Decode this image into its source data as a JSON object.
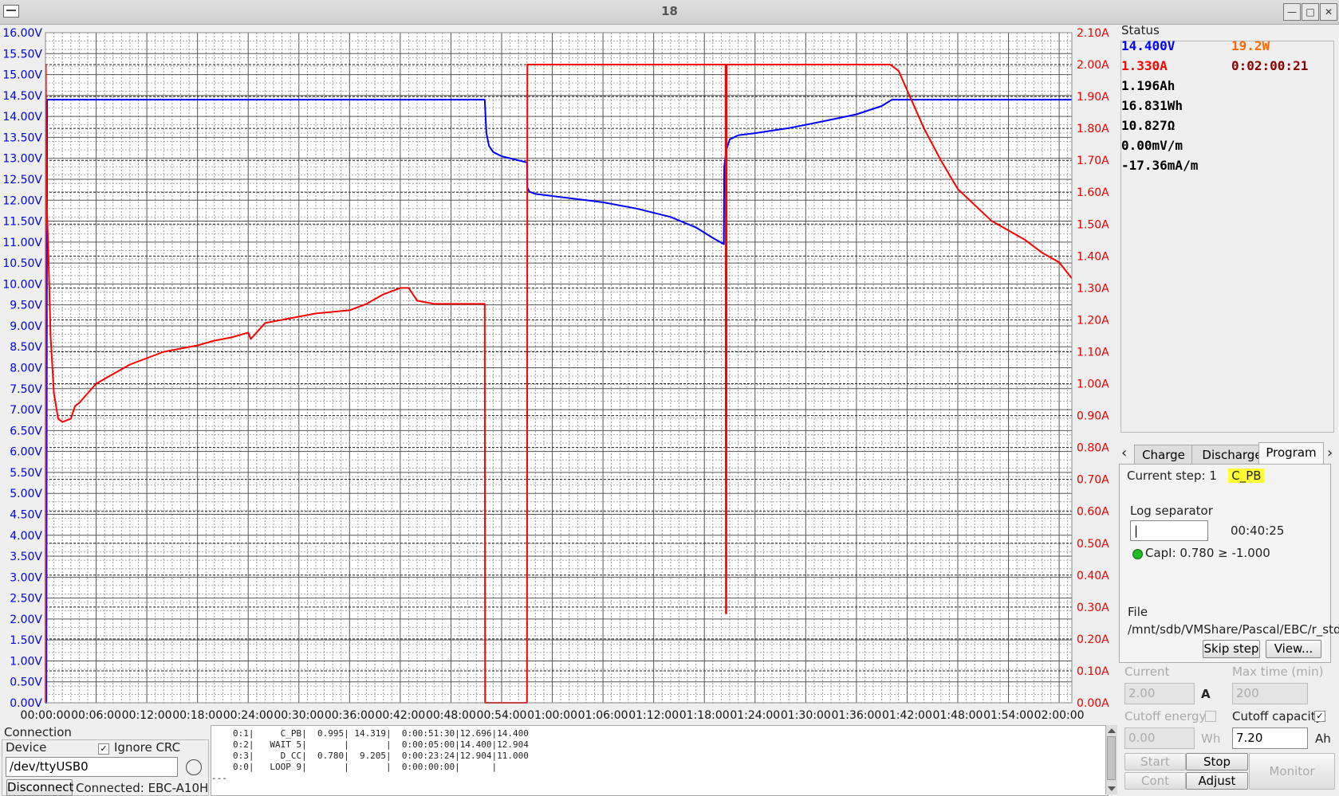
{
  "window": {
    "title": "18"
  },
  "chart_data": {
    "type": "line",
    "xlabel": "",
    "x_ticks": [
      "00:00:00",
      "00:06:00",
      "00:12:00",
      "00:18:00",
      "00:24:00",
      "00:30:00",
      "00:36:00",
      "00:42:00",
      "00:48:00",
      "00:54:00",
      "01:00:00",
      "01:06:00",
      "01:12:00",
      "01:18:00",
      "01:24:00",
      "01:30:00",
      "01:36:00",
      "01:42:00",
      "01:48:00",
      "01:54:00",
      "02:00:00"
    ],
    "x_range_min": [
      0,
      121.5
    ],
    "y_left": {
      "label": "",
      "unit": "V",
      "range": [
        0,
        16
      ],
      "ticks": [
        "0.00V",
        "0.50V",
        "1.00V",
        "1.50V",
        "2.00V",
        "2.50V",
        "3.00V",
        "3.50V",
        "4.00V",
        "4.50V",
        "5.00V",
        "5.50V",
        "6.00V",
        "6.50V",
        "7.00V",
        "7.50V",
        "8.00V",
        "8.50V",
        "9.00V",
        "9.50V",
        "10.00V",
        "10.50V",
        "11.00V",
        "11.50V",
        "12.00V",
        "12.50V",
        "13.00V",
        "13.50V",
        "14.00V",
        "14.50V",
        "15.00V",
        "15.50V",
        "16.00V"
      ]
    },
    "y_right": {
      "label": "",
      "unit": "A",
      "range": [
        0,
        2.1
      ],
      "ticks": [
        "0.00A",
        "0.10A",
        "0.20A",
        "0.30A",
        "0.40A",
        "0.50A",
        "0.60A",
        "0.70A",
        "0.80A",
        "0.90A",
        "1.00A",
        "1.10A",
        "1.20A",
        "1.30A",
        "1.40A",
        "1.50A",
        "1.60A",
        "1.70A",
        "1.80A",
        "1.90A",
        "2.00A",
        "2.10A"
      ]
    },
    "grid": true,
    "series": [
      {
        "axis": "left",
        "color": "#0000ff",
        "x": [
          0,
          0.1,
          0.2,
          52,
          52.2,
          52.5,
          53,
          54,
          56,
          57,
          57.05,
          57.3,
          58,
          62,
          66,
          70,
          74,
          77,
          79,
          80.3,
          80.35,
          80.6,
          81,
          82,
          84,
          88,
          92,
          96,
          99,
          100.2,
          101,
          121.5
        ],
        "y": [
          0,
          0,
          14.4,
          14.4,
          13.6,
          13.3,
          13.15,
          13.05,
          12.95,
          12.9,
          12.3,
          12.2,
          12.15,
          12.05,
          11.95,
          11.8,
          11.6,
          11.35,
          11.1,
          10.95,
          12.8,
          13.2,
          13.45,
          13.55,
          13.6,
          13.72,
          13.88,
          14.05,
          14.25,
          14.4,
          14.4,
          14.4
        ]
      },
      {
        "axis": "right",
        "color": "#ff0000",
        "x": [
          0,
          0.05,
          0.1,
          0.3,
          0.6,
          1,
          1.5,
          2,
          3,
          3.5,
          4,
          5,
          6,
          8,
          10,
          12,
          14,
          16,
          18,
          20,
          22,
          24,
          24.3,
          26,
          28,
          30,
          32,
          34,
          36,
          38,
          40,
          42,
          43,
          44,
          46,
          50,
          52,
          52.05,
          57,
          57.05,
          80.5,
          80.55,
          80.6,
          80.65,
          100,
          101,
          102,
          104,
          106,
          108,
          110,
          112,
          114,
          116,
          118,
          120,
          121.5
        ],
        "y": [
          0,
          2.0,
          1.6,
          1.45,
          1.15,
          0.97,
          0.89,
          0.88,
          0.89,
          0.93,
          0.94,
          0.97,
          1.0,
          1.03,
          1.06,
          1.08,
          1.1,
          1.11,
          1.12,
          1.135,
          1.145,
          1.16,
          1.14,
          1.19,
          1.2,
          1.21,
          1.22,
          1.225,
          1.23,
          1.25,
          1.28,
          1.3,
          1.3,
          1.26,
          1.25,
          1.25,
          1.25,
          0.0,
          0.0,
          2.0,
          2.0,
          0.28,
          0.28,
          2.0,
          2.0,
          1.98,
          1.92,
          1.8,
          1.7,
          1.61,
          1.56,
          1.51,
          1.48,
          1.45,
          1.41,
          1.38,
          1.33
        ]
      }
    ]
  },
  "status": {
    "header": "Status",
    "voltage": "14.400V",
    "power": "19.2W",
    "current": "1.330A",
    "time": "0:02:00:21",
    "capacity": "1.196Ah",
    "energy": "16.831Wh",
    "resistance": "10.827Ω",
    "dv": "0.00mV/m",
    "di": "-17.36mA/m",
    "colors": {
      "voltage": "#0000ff",
      "power": "#ff6a00",
      "current": "#ff0000",
      "time": "#8b0000",
      "other": "#000000"
    }
  },
  "tabs": {
    "items": [
      "Charge",
      "Discharge",
      "Program"
    ],
    "active": "Program"
  },
  "program": {
    "current_step_label": "Current step:",
    "current_step_value": "1",
    "current_step_name": "C_PB",
    "log_separator_label": "Log separator",
    "log_separator_value": "|",
    "elapsed": "00:40:25",
    "condition": "CapI: 0.780 ≥ -1.000",
    "file_label": "File",
    "file_path": "/mnt/sdb/VMShare/Pascal/EBC/r_std.",
    "skip_step": "Skip step",
    "view": "View..."
  },
  "settings": {
    "current_label": "Current",
    "current_value": "2.00",
    "current_unit": "A",
    "max_time_label": "Max time (min)",
    "max_time_value": "200",
    "cutoff_energy_label": "Cutoff energy",
    "cutoff_energy_value": "0.00",
    "cutoff_energy_unit": "Wh",
    "cutoff_capacity_label": "Cutoff capacity",
    "cutoff_capacity_value": "7.20",
    "cutoff_capacity_unit": "Ah",
    "start": "Start",
    "stop": "Stop",
    "cont": "Cont",
    "adjust": "Adjust",
    "monitor": "Monitor"
  },
  "connection": {
    "header": "Connection",
    "device_label": "Device",
    "ignore_crc": "Ignore CRC",
    "device_value": "/dev/ttyUSB0",
    "disconnect": "Disconnect",
    "status": "Connected: EBC-A10H"
  },
  "log": {
    "lines": [
      "0:1|     C_PB|  0.995| 14.319|  0:00:51:30|12.696|14.400",
      "0:2|   WAIT 5|       |       |  0:00:05:00|14.400|12.904",
      "0:3|     D_CC|  0.780|  9.205|  0:00:23:24|12.904|11.000",
      "0:0|   LOOP 9|       |       |  0:00:00:00|      |"
    ],
    "marker": "---"
  }
}
